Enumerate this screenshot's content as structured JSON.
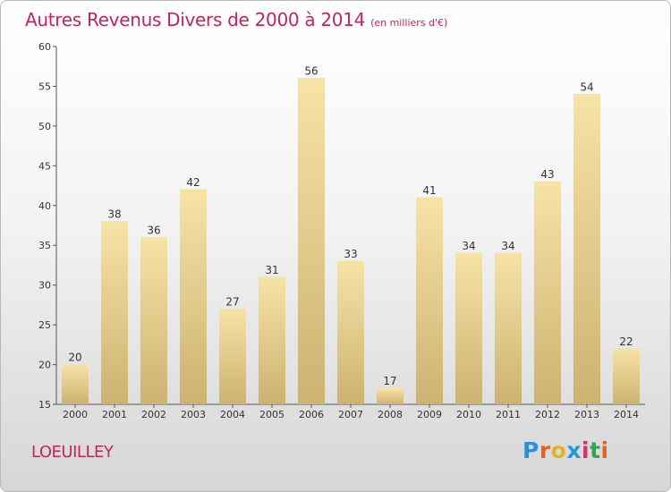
{
  "chart_data": {
    "type": "bar",
    "title": "Autres Revenus Divers de 2000 à 2014",
    "subtitle": "(en milliers d'€)",
    "categories": [
      "2000",
      "2001",
      "2002",
      "2003",
      "2004",
      "2005",
      "2006",
      "2007",
      "2008",
      "2009",
      "2010",
      "2011",
      "2012",
      "2013",
      "2014"
    ],
    "values": [
      20,
      38,
      36,
      42,
      27,
      31,
      56,
      33,
      17,
      41,
      34,
      34,
      43,
      54,
      22
    ],
    "ylim": [
      15,
      60
    ],
    "yticks": [
      15,
      20,
      25,
      30,
      35,
      40,
      45,
      50,
      55,
      60
    ],
    "grid": false,
    "bar_color": "#e7cb82",
    "bar_color_light": "#f6e3a6",
    "bar_color_dark": "#cdb270"
  },
  "footer": {
    "commune": "LOEUILLEY",
    "logo_letters": [
      {
        "char": "P",
        "color": "#2f8fd6"
      },
      {
        "char": "r",
        "color": "#e8611c"
      },
      {
        "char": "o",
        "color": "#e8b21c"
      },
      {
        "char": "x",
        "color": "#1f9ad6"
      },
      {
        "char": "i",
        "color": "#d62f6d"
      },
      {
        "char": "t",
        "color": "#2fa84a"
      },
      {
        "char": "i",
        "color": "#e8611c"
      }
    ]
  }
}
